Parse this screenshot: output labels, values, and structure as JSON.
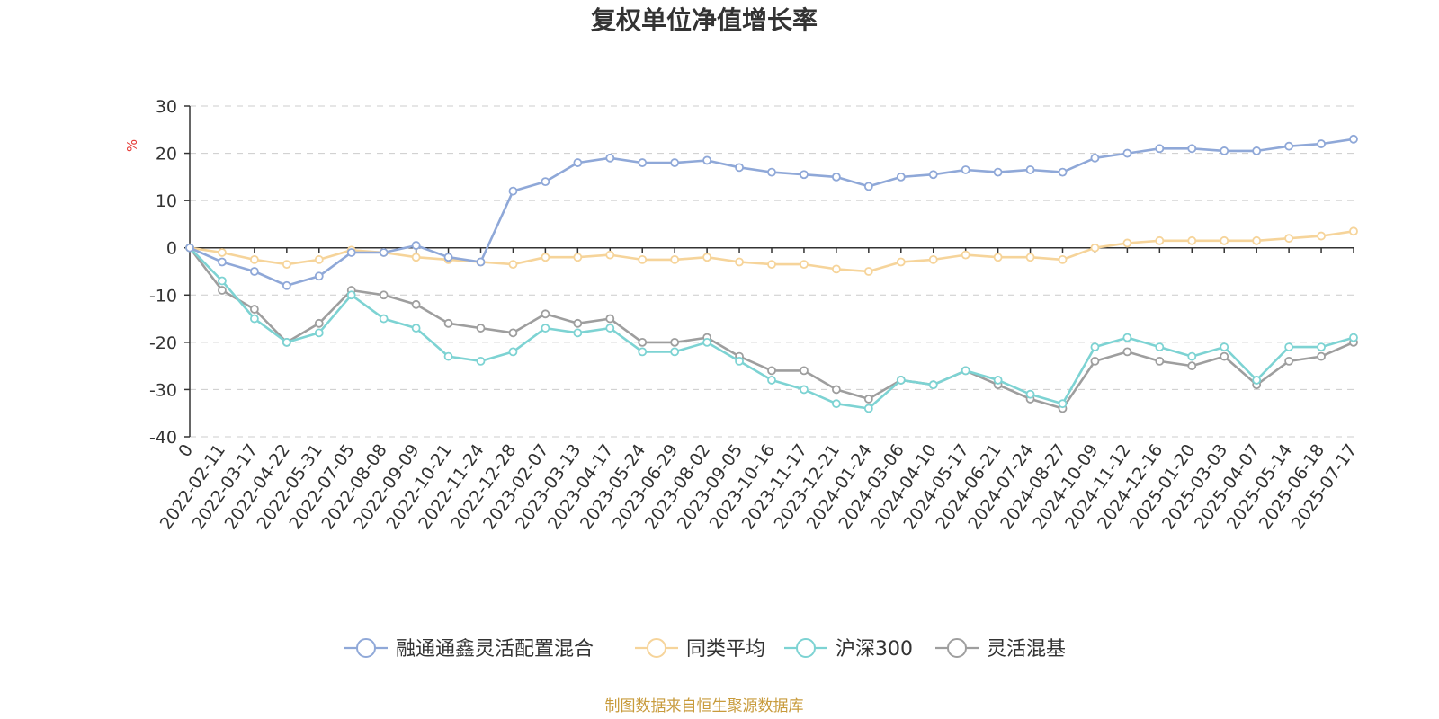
{
  "chart_data": {
    "type": "line",
    "title": "复权单位净值增长率",
    "ylabel": "%",
    "ylim": [
      -40,
      30
    ],
    "yticks": [
      30,
      20,
      10,
      0,
      -10,
      -20,
      -30,
      -40
    ],
    "grid": true,
    "legend_position": "bottom",
    "x": [
      "0",
      "2022-02-11",
      "2022-03-17",
      "2022-04-22",
      "2022-05-31",
      "2022-07-05",
      "2022-08-08",
      "2022-09-09",
      "2022-10-21",
      "2022-11-24",
      "2022-12-28",
      "2023-02-07",
      "2023-03-13",
      "2023-04-17",
      "2023-05-24",
      "2023-06-29",
      "2023-08-02",
      "2023-09-05",
      "2023-10-16",
      "2023-11-17",
      "2023-12-21",
      "2024-01-24",
      "2024-03-06",
      "2024-04-10",
      "2024-05-17",
      "2024-06-21",
      "2024-07-24",
      "2024-08-27",
      "2024-10-09",
      "2024-11-12",
      "2024-12-16",
      "2025-01-20",
      "2025-03-03",
      "2025-04-07",
      "2025-05-14",
      "2025-06-18",
      "2025-07-17"
    ],
    "series": [
      {
        "name": "融通通鑫灵活配置混合",
        "color": "#8fa8d8",
        "values": [
          0,
          -3,
          -5,
          -8,
          -6,
          -1,
          -1,
          0.5,
          -2,
          -3,
          12,
          14,
          18,
          19,
          18,
          18,
          18.5,
          17,
          16,
          15.5,
          15,
          13,
          15,
          15.5,
          16.5,
          16,
          16.5,
          16,
          19,
          20,
          21,
          21,
          20.5,
          20.5,
          21.5,
          22,
          23
        ]
      },
      {
        "name": "同类平均",
        "color": "#f6d49a",
        "values": [
          0,
          -1,
          -2.5,
          -3.5,
          -2.5,
          -0.5,
          -1,
          -2,
          -2.5,
          -3,
          -3.5,
          -2,
          -2,
          -1.5,
          -2.5,
          -2.5,
          -2,
          -3,
          -3.5,
          -3.5,
          -4.5,
          -5,
          -3,
          -2.5,
          -1.5,
          -2,
          -2,
          -2.5,
          0,
          1,
          1.5,
          1.5,
          1.5,
          1.5,
          2,
          2.5,
          3.5
        ]
      },
      {
        "name": "沪深300",
        "color": "#7dd3d3",
        "values": [
          0,
          -7,
          -15,
          -20,
          -18,
          -10,
          -15,
          -17,
          -23,
          -24,
          -22,
          -17,
          -18,
          -17,
          -22,
          -22,
          -20,
          -24,
          -28,
          -30,
          -33,
          -34,
          -28,
          -29,
          -26,
          -28,
          -31,
          -33,
          -21,
          -19,
          -21,
          -23,
          -21,
          -28,
          -21,
          -21,
          -19
        ]
      },
      {
        "name": "灵活混基",
        "color": "#9e9e9e",
        "values": [
          0,
          -9,
          -13,
          -20,
          -16,
          -9,
          -10,
          -12,
          -16,
          -17,
          -18,
          -14,
          -16,
          -15,
          -20,
          -20,
          -19,
          -23,
          -26,
          -26,
          -30,
          -32,
          -28,
          -29,
          -26,
          -29,
          -32,
          -34,
          -24,
          -22,
          -24,
          -25,
          -23,
          -29,
          -24,
          -23,
          -20
        ]
      }
    ]
  },
  "footer": "制图数据来自恒生聚源数据库"
}
